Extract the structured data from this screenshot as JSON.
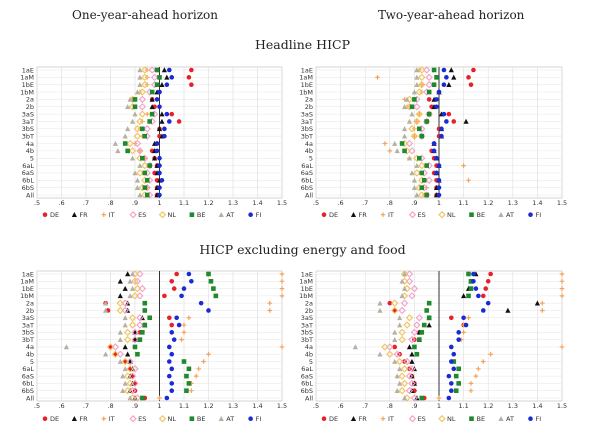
{
  "header": {
    "col_left": "One-year-ahead horizon",
    "col_right": "Two-year-ahead horizon",
    "section_top": "Headline HICP",
    "section_bottom": "HICP excluding energy and food"
  },
  "legend": [
    {
      "name": "DE",
      "color": "#e8202a",
      "marker": "circle"
    },
    {
      "name": "FR",
      "color": "#111111",
      "marker": "triangle"
    },
    {
      "name": "IT",
      "color": "#f5a35c",
      "marker": "plus"
    },
    {
      "name": "ES",
      "color": "#f2a0c8",
      "marker": "diamond"
    },
    {
      "name": "NL",
      "color": "#f2c25b",
      "marker": "diamond"
    },
    {
      "name": "BE",
      "color": "#1f8a2c",
      "marker": "square"
    },
    {
      "name": "AT",
      "color": "#b5b0a0",
      "marker": "triangle"
    },
    {
      "name": "FI",
      "color": "#1a2bd6",
      "marker": "circle"
    }
  ],
  "chart_data": [
    {
      "type": "scatter",
      "title": "Headline HICP",
      "horizon": "One-year-ahead horizon",
      "categories": [
        "1aE",
        "1aM",
        "1bE",
        "1bM",
        "2a",
        "2b",
        "3aS",
        "3aT",
        "3bS",
        "3bT",
        "4a",
        "4b",
        "5",
        "6aL",
        "6aS",
        "6bL",
        "6bS",
        "All"
      ],
      "x_ticks": [
        ".5",
        ".6",
        ".7",
        ".8",
        ".9",
        "1",
        "1.1",
        "1.2",
        "1.3",
        "1.4",
        "1.5"
      ],
      "xlim": [
        0.5,
        1.5
      ],
      "ref_line": 1,
      "series": [
        {
          "name": "DE",
          "values": [
            1.13,
            1.12,
            1.13,
            1.0,
            0.97,
            0.98,
            1.05,
            1.08,
            1.0,
            1.0,
            0.99,
            0.97,
            0.98,
            0.99,
            0.98,
            0.99,
            0.99,
            0.99
          ]
        },
        {
          "name": "FR",
          "values": [
            1.02,
            1.03,
            1.01,
            0.99,
            0.97,
            0.97,
            1.01,
            1.01,
            1.0,
            1.01,
            0.98,
            0.98,
            0.98,
            0.99,
            0.99,
            1.0,
            0.99,
            0.99
          ]
        },
        {
          "name": "IT",
          "values": [
            0.95,
            0.95,
            0.95,
            0.92,
            0.89,
            0.9,
            0.95,
            0.93,
            0.92,
            0.93,
            0.9,
            0.92,
            0.94,
            0.96,
            0.94,
            0.95,
            0.95,
            0.95
          ]
        },
        {
          "name": "ES",
          "values": [
            0.97,
            0.98,
            0.98,
            0.96,
            0.93,
            0.93,
            0.98,
            0.97,
            0.95,
            0.95,
            0.91,
            0.92,
            0.94,
            0.96,
            0.95,
            0.96,
            0.95,
            0.96
          ]
        },
        {
          "name": "NL",
          "values": [
            0.94,
            0.94,
            0.94,
            0.93,
            0.89,
            0.89,
            0.93,
            0.92,
            0.91,
            0.91,
            0.88,
            0.89,
            0.92,
            0.94,
            0.92,
            0.94,
            0.93,
            0.94
          ]
        },
        {
          "name": "BE",
          "values": [
            0.99,
            1.0,
            0.99,
            0.97,
            0.9,
            0.9,
            0.97,
            0.96,
            0.93,
            0.94,
            0.86,
            0.87,
            0.93,
            0.96,
            0.94,
            0.95,
            0.94,
            0.95
          ]
        },
        {
          "name": "AT",
          "values": [
            0.92,
            0.92,
            0.92,
            0.91,
            0.88,
            0.87,
            0.9,
            0.89,
            0.87,
            0.86,
            0.82,
            0.83,
            0.89,
            0.92,
            0.9,
            0.91,
            0.91,
            0.92
          ]
        },
        {
          "name": "FI",
          "values": [
            1.04,
            1.05,
            1.03,
            1.0,
            0.99,
            1.0,
            1.03,
            1.04,
            1.02,
            1.02,
            0.99,
            0.99,
            1.0,
            1.0,
            1.0,
            1.01,
            1.0,
            1.0
          ]
        }
      ]
    },
    {
      "type": "scatter",
      "title": "Headline HICP",
      "horizon": "Two-year-ahead horizon",
      "categories": [
        "1aE",
        "1aM",
        "1bE",
        "1bM",
        "2a",
        "2b",
        "3aS",
        "3aT",
        "3bS",
        "3bT",
        "4a",
        "4b",
        "5",
        "6aL",
        "6aS",
        "6bL",
        "6bS",
        "All"
      ],
      "x_ticks": [
        ".5",
        ".6",
        ".7",
        ".8",
        ".9",
        "1",
        "1.1",
        "1.2",
        "1.3",
        "1.4",
        "1.5"
      ],
      "xlim": [
        0.5,
        1.5
      ],
      "ref_line": 1,
      "series": [
        {
          "name": "DE",
          "values": [
            1.14,
            1.12,
            1.13,
            1.0,
            0.96,
            0.97,
            1.04,
            1.06,
            1.0,
            1.0,
            0.98,
            0.97,
            0.98,
            0.99,
            0.98,
            0.99,
            0.99,
            0.99
          ]
        },
        {
          "name": "FR",
          "values": [
            1.05,
            1.06,
            1.04,
            1.0,
            0.98,
            0.98,
            1.01,
            1.11,
            1.01,
            1.01,
            0.98,
            0.98,
            0.99,
            1.0,
            0.99,
            1.0,
            0.99,
            0.99
          ]
        },
        {
          "name": "IT",
          "values": [
            0.92,
            0.75,
            0.93,
            0.93,
            0.86,
            0.87,
            0.92,
            0.91,
            0.9,
            0.9,
            0.78,
            0.8,
            0.88,
            1.1,
            0.93,
            1.12,
            0.95,
            0.94
          ]
        },
        {
          "name": "ES",
          "values": [
            0.95,
            0.96,
            0.96,
            0.95,
            0.91,
            0.91,
            0.96,
            0.95,
            0.93,
            0.93,
            0.88,
            0.89,
            0.93,
            0.96,
            0.94,
            0.96,
            0.94,
            0.95
          ]
        },
        {
          "name": "NL",
          "values": [
            0.93,
            0.93,
            0.93,
            0.92,
            0.88,
            0.88,
            0.92,
            0.91,
            0.89,
            0.9,
            0.86,
            0.87,
            0.91,
            0.93,
            0.91,
            0.93,
            0.92,
            0.93
          ]
        },
        {
          "name": "BE",
          "values": [
            0.98,
            0.99,
            0.98,
            0.96,
            0.9,
            0.89,
            0.96,
            0.95,
            0.92,
            0.93,
            0.85,
            0.86,
            0.92,
            0.95,
            0.93,
            0.94,
            0.93,
            0.95
          ]
        },
        {
          "name": "AT",
          "values": [
            0.91,
            0.91,
            0.91,
            0.9,
            0.87,
            0.86,
            0.89,
            0.88,
            0.86,
            0.86,
            0.82,
            0.83,
            0.88,
            0.91,
            0.89,
            0.9,
            0.9,
            0.91
          ]
        },
        {
          "name": "FI",
          "values": [
            1.02,
            1.03,
            1.02,
            1.0,
            0.99,
            0.99,
            1.02,
            1.03,
            1.01,
            1.01,
            0.98,
            0.98,
            0.99,
            1.0,
            0.99,
            1.0,
            1.0,
            1.0
          ]
        }
      ]
    },
    {
      "type": "scatter",
      "title": "HICP excluding energy and food",
      "horizon": "One-year-ahead horizon",
      "categories": [
        "1aE",
        "1aM",
        "1bE",
        "1bM",
        "2a",
        "2b",
        "3aS",
        "3aT",
        "3bS",
        "3bT",
        "4a",
        "4b",
        "5",
        "6aL",
        "6aS",
        "6bL",
        "6bS",
        "All"
      ],
      "x_ticks": [
        ".5",
        ".6",
        ".7",
        ".8",
        ".9",
        "1",
        "1.1",
        "1.2",
        "1.3",
        "1.4",
        "1.5"
      ],
      "xlim": [
        0.5,
        1.5
      ],
      "ref_line": 1,
      "series": [
        {
          "name": "DE",
          "values": [
            1.07,
            1.05,
            1.06,
            1.02,
            0.78,
            0.79,
            1.04,
            1.05,
            0.92,
            0.9,
            0.8,
            0.82,
            0.86,
            0.88,
            0.89,
            0.9,
            0.9,
            0.94
          ]
        },
        {
          "name": "FR",
          "values": [
            0.87,
            0.84,
            0.86,
            0.84,
            0.87,
            0.87,
            0.93,
            0.94,
            0.9,
            0.9,
            0.86,
            0.87,
            0.88,
            0.89,
            0.88,
            0.89,
            0.88,
            0.9
          ]
        },
        {
          "name": "IT",
          "values": [
            1.5,
            1.5,
            1.5,
            1.5,
            1.45,
            1.45,
            1.12,
            1.1,
            1.1,
            1.09,
            1.5,
            1.2,
            1.18,
            1.16,
            1.15,
            1.13,
            1.13,
            1.0
          ]
        },
        {
          "name": "ES",
          "values": [
            0.92,
            0.91,
            0.93,
            0.92,
            0.86,
            0.86,
            0.92,
            0.92,
            0.9,
            0.9,
            0.82,
            0.84,
            0.88,
            0.9,
            0.89,
            0.9,
            0.89,
            0.91
          ]
        },
        {
          "name": "NL",
          "values": [
            0.9,
            0.9,
            0.91,
            0.9,
            0.84,
            0.84,
            0.89,
            0.89,
            0.87,
            0.87,
            0.8,
            0.82,
            0.86,
            0.88,
            0.87,
            0.88,
            0.87,
            0.89
          ]
        },
        {
          "name": "BE",
          "values": [
            1.2,
            1.21,
            1.22,
            1.23,
            0.94,
            0.94,
            0.96,
            0.94,
            0.93,
            0.92,
            0.9,
            0.91,
            1.1,
            1.12,
            1.11,
            1.12,
            1.11,
            0.93
          ]
        },
        {
          "name": "AT",
          "values": [
            0.89,
            0.88,
            0.89,
            0.88,
            0.78,
            0.78,
            0.86,
            0.86,
            0.84,
            0.84,
            0.62,
            0.78,
            0.84,
            0.86,
            0.85,
            0.86,
            0.85,
            0.88
          ]
        },
        {
          "name": "FI",
          "values": [
            1.12,
            1.13,
            1.1,
            1.09,
            1.17,
            1.2,
            1.07,
            1.08,
            1.05,
            1.06,
            1.04,
            1.05,
            1.04,
            1.05,
            1.04,
            1.05,
            1.05,
            1.03
          ]
        }
      ]
    },
    {
      "type": "scatter",
      "title": "HICP excluding energy and food",
      "horizon": "Two-year-ahead horizon",
      "categories": [
        "1aE",
        "1aM",
        "1bE",
        "1bM",
        "2a",
        "2b",
        "3aS",
        "3aT",
        "3bS",
        "3bT",
        "4a",
        "4b",
        "5",
        "6aL",
        "6aS",
        "6bL",
        "6bS",
        "All"
      ],
      "x_ticks": [
        ".5",
        ".6",
        ".7",
        ".8",
        ".9",
        "1",
        "1.1",
        "1.2",
        "1.3",
        "1.4",
        "1.5"
      ],
      "xlim": [
        0.5,
        1.5
      ],
      "ref_line": 1,
      "series": [
        {
          "name": "DE",
          "values": [
            1.21,
            1.2,
            1.19,
            1.18,
            0.8,
            0.82,
            1.05,
            1.1,
            0.92,
            0.9,
            0.82,
            0.84,
            0.86,
            0.88,
            0.89,
            0.9,
            0.9,
            0.94
          ]
        },
        {
          "name": "FR",
          "values": [
            1.15,
            1.13,
            1.12,
            1.1,
            1.4,
            1.28,
            0.96,
            0.96,
            0.92,
            0.92,
            0.88,
            0.89,
            0.89,
            0.9,
            0.89,
            0.9,
            0.89,
            0.91
          ]
        },
        {
          "name": "IT",
          "values": [
            1.5,
            1.5,
            1.5,
            1.5,
            1.42,
            1.42,
            1.12,
            1.1,
            1.1,
            1.09,
            1.5,
            1.21,
            1.18,
            1.16,
            1.15,
            1.13,
            1.13,
            1.0
          ]
        },
        {
          "name": "ES",
          "values": [
            0.88,
            0.88,
            0.9,
            0.89,
            0.86,
            0.85,
            0.92,
            0.91,
            0.9,
            0.89,
            0.8,
            0.83,
            0.87,
            0.89,
            0.88,
            0.89,
            0.88,
            0.9
          ]
        },
        {
          "name": "NL",
          "values": [
            0.86,
            0.86,
            0.87,
            0.86,
            0.82,
            0.82,
            0.88,
            0.87,
            0.85,
            0.85,
            0.78,
            0.8,
            0.84,
            0.86,
            0.85,
            0.86,
            0.85,
            0.87
          ]
        },
        {
          "name": "BE",
          "values": [
            1.12,
            1.13,
            1.13,
            1.12,
            0.96,
            0.95,
            0.96,
            0.94,
            0.93,
            0.92,
            0.9,
            0.91,
            1.06,
            1.08,
            1.07,
            1.08,
            1.07,
            0.93
          ]
        },
        {
          "name": "AT",
          "values": [
            0.86,
            0.85,
            0.86,
            0.85,
            0.76,
            0.76,
            0.84,
            0.84,
            0.82,
            0.82,
            0.66,
            0.76,
            0.82,
            0.84,
            0.83,
            0.84,
            0.83,
            0.86
          ]
        },
        {
          "name": "FI",
          "values": [
            1.14,
            1.14,
            1.15,
            1.16,
            1.2,
            1.18,
            1.1,
            1.11,
            1.08,
            1.08,
            1.05,
            1.06,
            1.05,
            1.06,
            1.04,
            1.05,
            1.05,
            1.04
          ]
        }
      ]
    }
  ]
}
